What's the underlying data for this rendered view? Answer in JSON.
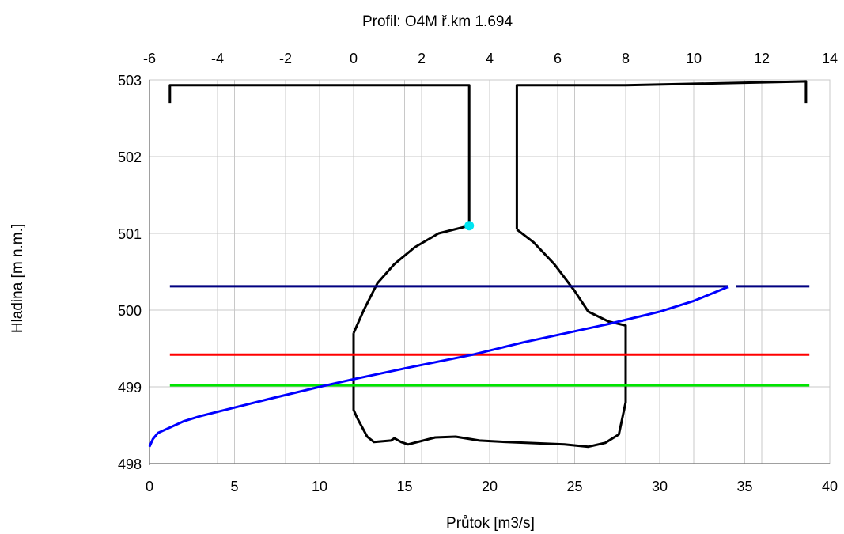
{
  "chart_data": {
    "type": "line",
    "title": "Profil: O4M  ř.km 1.694",
    "xlabel": "Průtok [m3/s]",
    "ylabel": "Hladina [m n.m.]",
    "xlim": [
      0,
      40
    ],
    "ylim": [
      498,
      503
    ],
    "x_ticks": [
      0,
      5,
      10,
      15,
      20,
      25,
      30,
      35,
      40
    ],
    "y_ticks": [
      498,
      499,
      500,
      501,
      502,
      503
    ],
    "x2lim": [
      -6,
      14
    ],
    "x2_ticks": [
      -6,
      -4,
      -2,
      0,
      2,
      4,
      6,
      8,
      10,
      12,
      14
    ],
    "x_minor_grid_step": 2,
    "grid": true,
    "legend": "none",
    "series": [
      {
        "axis": "top",
        "color": "#000000",
        "segments": [
          [
            [
              -5.4,
              502.7
            ],
            [
              -5.4,
              502.93
            ],
            [
              3.4,
              502.93
            ],
            [
              3.4,
              501.1
            ]
          ],
          [
            [
              4.8,
              501.05
            ],
            [
              4.8,
              502.93
            ],
            [
              8.0,
              502.93
            ],
            [
              13.3,
              502.98
            ],
            [
              13.3,
              502.7
            ]
          ]
        ]
      },
      {
        "axis": "top",
        "color": "#000000",
        "segments": [
          [
            [
              0.0,
              499.7
            ],
            [
              0.3,
              500.0
            ],
            [
              0.7,
              500.35
            ],
            [
              1.2,
              500.6
            ],
            [
              1.8,
              500.82
            ],
            [
              2.5,
              501.0
            ],
            [
              3.4,
              501.1
            ]
          ],
          [
            [
              4.8,
              501.05
            ],
            [
              5.3,
              500.88
            ],
            [
              5.9,
              500.6
            ],
            [
              6.5,
              500.25
            ],
            [
              6.9,
              499.98
            ],
            [
              7.5,
              499.85
            ],
            [
              8.0,
              499.8
            ],
            [
              8.0,
              498.8
            ],
            [
              7.8,
              498.38
            ],
            [
              7.4,
              498.27
            ],
            [
              6.9,
              498.22
            ],
            [
              6.2,
              498.25
            ],
            [
              4.5,
              498.28
            ],
            [
              3.7,
              498.3
            ],
            [
              3.0,
              498.35
            ],
            [
              2.4,
              498.34
            ],
            [
              1.6,
              498.25
            ],
            [
              1.4,
              498.28
            ],
            [
              1.2,
              498.33
            ],
            [
              1.1,
              498.3
            ],
            [
              0.6,
              498.28
            ],
            [
              0.4,
              498.35
            ],
            [
              0.1,
              498.6
            ],
            [
              0.0,
              498.7
            ],
            [
              0.0,
              499.7
            ]
          ]
        ]
      },
      {
        "axis": "top",
        "color": "#00e5f2",
        "marker": {
          "x": 3.4,
          "y": 501.1
        }
      },
      {
        "axis": "bottom",
        "color": "#000080",
        "segments": [
          [
            [
              1.2,
              500.31
            ],
            [
              34.0,
              500.31
            ]
          ],
          [
            [
              34.5,
              500.31
            ],
            [
              38.8,
              500.31
            ]
          ]
        ]
      },
      {
        "axis": "bottom",
        "color": "#ff0000",
        "segments": [
          [
            [
              1.2,
              499.42
            ],
            [
              38.8,
              499.42
            ]
          ]
        ]
      },
      {
        "axis": "bottom",
        "color": "#00e400",
        "segments": [
          [
            [
              1.2,
              499.02
            ],
            [
              38.8,
              499.02
            ]
          ]
        ]
      },
      {
        "axis": "bottom",
        "color": "#0000ff",
        "segments": [
          [
            [
              0.0,
              498.22
            ],
            [
              0.2,
              498.32
            ],
            [
              0.5,
              498.4
            ],
            [
              1.0,
              498.45
            ],
            [
              2.0,
              498.55
            ],
            [
              3.0,
              498.62
            ],
            [
              5.0,
              498.73
            ],
            [
              7.0,
              498.84
            ],
            [
              10.0,
              499.0
            ],
            [
              12.0,
              499.1
            ],
            [
              15.0,
              499.24
            ],
            [
              19.0,
              499.42
            ],
            [
              22.0,
              499.58
            ],
            [
              27.0,
              499.82
            ],
            [
              30.0,
              499.98
            ],
            [
              32.0,
              500.12
            ],
            [
              34.0,
              500.3
            ]
          ]
        ]
      }
    ]
  }
}
